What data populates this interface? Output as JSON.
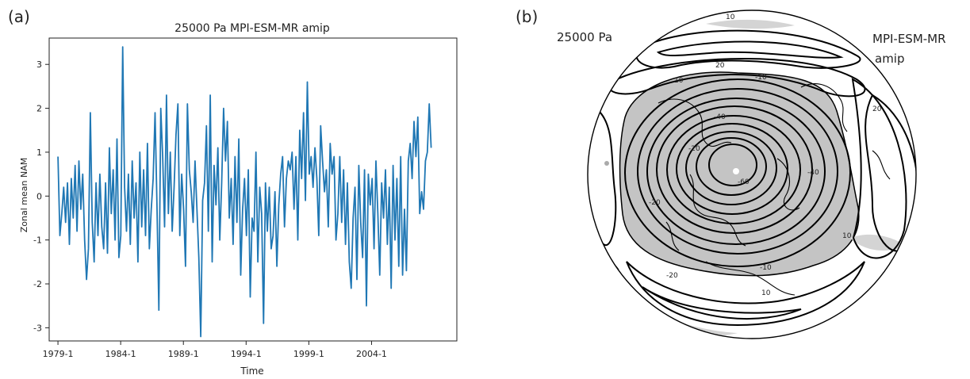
{
  "panel_a": {
    "label": "(a)",
    "chart_data": {
      "type": "line",
      "title": "25000 Pa  MPI-ESM-MR amip",
      "xlabel": "Time",
      "ylabel": "Zonal mean NAM",
      "x_ticks": [
        "1979-1",
        "1984-1",
        "1989-1",
        "1994-1",
        "1999-1",
        "2004-1"
      ],
      "x_start_year": 1979,
      "x_end_year": 2008,
      "y_ticks": [
        -3,
        -2,
        -1,
        0,
        1,
        2,
        3
      ],
      "ylim": [
        -3.3,
        3.6
      ],
      "grid": false,
      "series": [
        {
          "color": "#1f77b4",
          "values": [
            0.9,
            -0.9,
            -0.4,
            0.2,
            -0.6,
            0.3,
            -1.1,
            0.4,
            -0.5,
            0.7,
            -0.8,
            0.8,
            -0.3,
            0.5,
            -1.0,
            -1.9,
            -1.2,
            1.9,
            -0.6,
            -1.5,
            0.3,
            -0.9,
            0.5,
            -0.7,
            -1.2,
            0.3,
            -1.3,
            1.1,
            -0.4,
            0.6,
            -1.0,
            1.3,
            -1.4,
            -0.9,
            3.4,
            0.2,
            -0.8,
            0.5,
            -1.1,
            0.8,
            -0.5,
            0.3,
            -1.5,
            1.0,
            -0.7,
            0.6,
            -0.9,
            1.2,
            -1.2,
            -0.3,
            0.4,
            1.9,
            -0.2,
            -2.6,
            2.0,
            0.9,
            -0.7,
            2.3,
            -0.4,
            1.0,
            -0.8,
            0.2,
            1.4,
            2.1,
            -0.9,
            0.5,
            -0.3,
            -1.6,
            2.1,
            0.6,
            0.1,
            -0.6,
            0.8,
            -0.3,
            -1.4,
            -3.2,
            -0.1,
            0.3,
            1.6,
            -0.8,
            2.3,
            -1.5,
            0.7,
            -0.2,
            1.1,
            -1.0,
            0.3,
            2.0,
            0.8,
            1.7,
            -0.5,
            0.4,
            -1.1,
            0.9,
            -0.6,
            1.3,
            -1.8,
            -0.3,
            0.4,
            -0.9,
            0.6,
            -2.3,
            -0.5,
            -0.8,
            1.0,
            -1.5,
            0.2,
            -0.4,
            -2.9,
            0.3,
            -0.8,
            0.2,
            -1.2,
            -0.9,
            0.1,
            -1.6,
            -0.2,
            0.5,
            0.9,
            -0.7,
            0.4,
            0.8,
            0.6,
            1.0,
            -0.3,
            0.9,
            -1.0,
            1.5,
            0.4,
            1.9,
            -0.1,
            2.6,
            0.5,
            0.9,
            0.2,
            1.1,
            0.4,
            -0.9,
            1.6,
            0.8,
            0.1,
            0.6,
            -0.7,
            1.2,
            0.5,
            0.9,
            -1.0,
            -0.4,
            0.9,
            -0.6,
            0.6,
            -1.1,
            0.3,
            -1.5,
            -2.1,
            -0.5,
            0.2,
            -1.9,
            0.7,
            -0.6,
            -1.4,
            0.6,
            -2.5,
            0.5,
            -0.2,
            0.4,
            -1.2,
            0.8,
            -0.4,
            -1.8,
            0.3,
            -0.5,
            0.6,
            -1.1,
            0.2,
            -2.1,
            0.7,
            -1.0,
            0.4,
            -1.6,
            0.9,
            -1.8,
            -0.3,
            -1.7,
            0.8,
            1.2,
            0.4,
            1.7,
            0.9,
            1.8,
            -0.4,
            0.1,
            -0.3,
            0.8,
            1.0,
            2.1,
            1.1
          ]
        }
      ]
    }
  },
  "panel_b": {
    "label": "(b)",
    "left_label": "25000 Pa",
    "right_label_line1": "MPI-ESM-MR",
    "right_label_line2": "amip",
    "map_type": "polar stereographic regression map",
    "contour_labels": [
      "10",
      "20",
      "10",
      "-10",
      "-20",
      "-40",
      "-60",
      "-40",
      "-20",
      "-10",
      "10",
      "20",
      "10",
      "-20"
    ]
  }
}
